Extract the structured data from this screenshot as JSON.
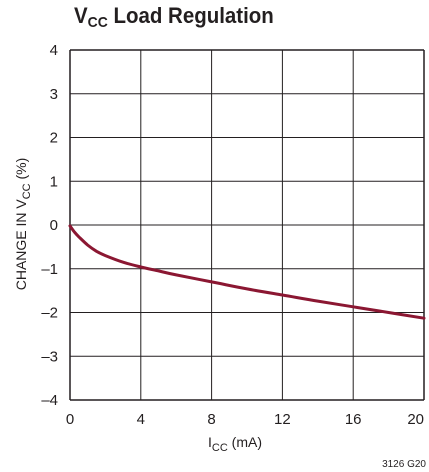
{
  "title": {
    "main": "V",
    "sub": "CC",
    "rest": " Load Regulation"
  },
  "figure_id": "3126 G20",
  "colors": {
    "curve": "#8b1732",
    "grid": "#231f20"
  },
  "chart_data": {
    "type": "line",
    "title": "VCC Load Regulation",
    "xlabel": "ICC (mA)",
    "ylabel": "CHANGE IN VCC (%)",
    "xlabel_parts": {
      "main": "I",
      "sub": "CC",
      "rest": " (mA)"
    },
    "ylabel_parts": {
      "pre": "CHANGE IN V",
      "sub": "CC",
      "post": " (%)"
    },
    "xlim": [
      0,
      20
    ],
    "ylim": [
      -4,
      4
    ],
    "xticks": [
      0,
      4,
      8,
      12,
      16,
      20
    ],
    "yticks": [
      4,
      3,
      2,
      1,
      0,
      -1,
      -2,
      -3,
      -4
    ],
    "xtick_labels": [
      "0",
      "4",
      "8",
      "12",
      "16",
      "20"
    ],
    "ytick_labels": [
      "4",
      "3",
      "2",
      "1",
      "0",
      "–1",
      "–2",
      "–3",
      "–4"
    ],
    "grid": true,
    "series": [
      {
        "x": [
          0,
          0.25,
          0.5,
          1,
          1.5,
          2,
          3,
          4,
          5,
          6,
          8,
          10,
          12,
          14,
          16,
          18,
          20
        ],
        "y": [
          -0.02,
          -0.16,
          -0.27,
          -0.46,
          -0.6,
          -0.7,
          -0.85,
          -0.96,
          -1.05,
          -1.14,
          -1.3,
          -1.46,
          -1.6,
          -1.74,
          -1.87,
          -2.0,
          -2.13
        ]
      }
    ]
  }
}
